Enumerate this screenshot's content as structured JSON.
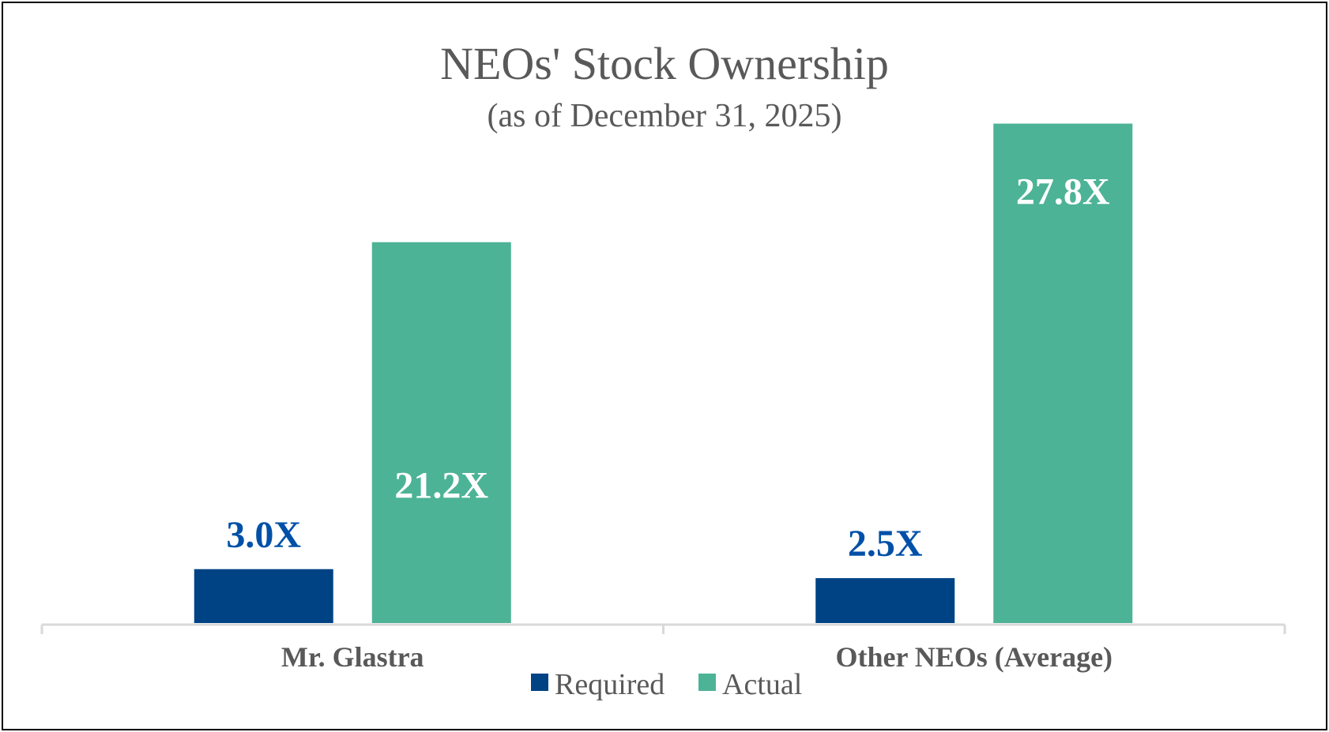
{
  "chart_data": {
    "type": "bar",
    "title": "NEOs' Stock Ownership",
    "subtitle": "(as of December 31, 2025)",
    "categories": [
      "Mr. Glastra",
      "Other NEOs (Average)"
    ],
    "series": [
      {
        "name": "Required",
        "values": [
          3.0,
          2.5
        ],
        "labels": [
          "3.0X",
          "2.5X"
        ],
        "color": "#004385",
        "label_color": "#0050A8",
        "label_position": "above"
      },
      {
        "name": "Actual",
        "values": [
          21.2,
          27.8
        ],
        "labels": [
          "21.2X",
          "27.8X"
        ],
        "color": "#4DB396",
        "label_color": "#ffffff",
        "label_position": "inside"
      }
    ],
    "ylim": [
      0,
      28
    ],
    "grid": false,
    "legend": "bottom"
  }
}
